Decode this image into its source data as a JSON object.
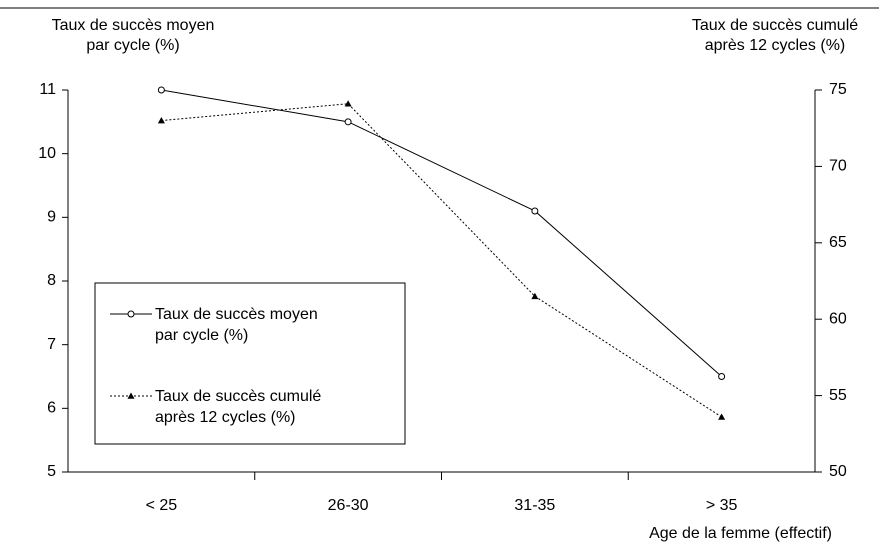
{
  "chart_data": {
    "type": "line",
    "ylabel": "Taux de succès moyen par cycle (%)",
    "y2label": "Taux de succès cumulé après 12 cycles (%)",
    "xlabel": "Age de la femme (effectif)",
    "categories": [
      "< 25",
      "26-30",
      "31-35",
      "> 35"
    ],
    "series": [
      {
        "name": "Taux de succès moyen par cycle (%)",
        "color": "#000000",
        "values": [
          11,
          10.5,
          9.1,
          6.5
        ]
      },
      {
        "name": "Taux de succès cumulé après 12 cycles (%)",
        "color": "#000000",
        "axis": "y2",
        "values": [
          73,
          74.1,
          61.5,
          53.6
        ]
      }
    ],
    "ylim": [
      5,
      11
    ],
    "yticks": [
      5,
      6,
      7,
      8,
      9,
      10,
      11
    ],
    "y2lim": [
      50,
      75
    ],
    "y2ticks": [
      50,
      55,
      60,
      65,
      70,
      75
    ],
    "grid": false
  }
}
